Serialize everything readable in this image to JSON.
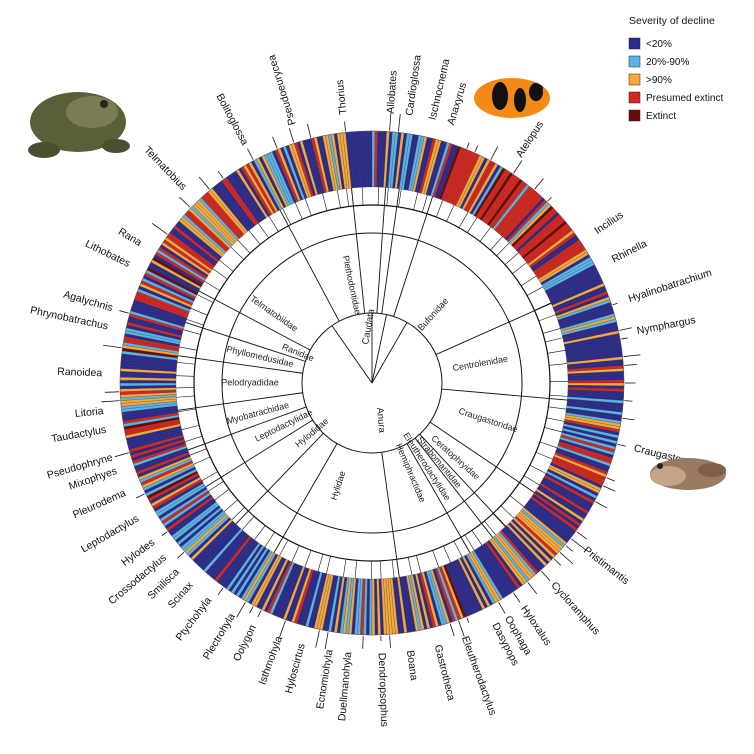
{
  "chart_data": {
    "type": "circular-phylogeny-bar",
    "legend": {
      "title": "Severity of decline",
      "entries": [
        {
          "label": "<20%",
          "color": "#2b2a8f"
        },
        {
          "label": "20%-90%",
          "color": "#5ab4e5"
        },
        {
          "label": ">90%",
          "color": "#f4a93c"
        },
        {
          "label": "Presumed extinct",
          "color": "#d7261e"
        },
        {
          "label": "Extinct",
          "color": "#6b0a0a"
        }
      ]
    },
    "orders": [
      {
        "name": "Caudata"
      },
      {
        "name": "Anura"
      }
    ],
    "families": [
      {
        "name": "Plethodontidae",
        "angle": -12,
        "r": 100
      },
      {
        "name": "Telmatobiidae",
        "angle": -55,
        "r": 120
      },
      {
        "name": "Ranidae",
        "angle": -68,
        "r": 80
      },
      {
        "name": "Phyllomedusidae",
        "angle": -77,
        "r": 115
      },
      {
        "name": "Pelodryadidae",
        "angle": -90,
        "r": 122
      },
      {
        "name": "Myobatrachidae",
        "angle": -105,
        "r": 118
      },
      {
        "name": "Leptodactylidae",
        "angle": -116,
        "r": 98
      },
      {
        "name": "Hylodidae",
        "angle": -130,
        "r": 78
      },
      {
        "name": "Hylidae",
        "angle": -162,
        "r": 108
      },
      {
        "name": "Hemiphractidae",
        "angle": 157,
        "r": 98
      },
      {
        "name": "Eleutherodactylidae",
        "angle": 147,
        "r": 100
      },
      {
        "name": "Strabomantidae",
        "angle": 140,
        "r": 104
      },
      {
        "name": "Craugastoridae",
        "angle": 108,
        "r": 122
      },
      {
        "name": "Ceratophryidae",
        "angle": 132,
        "r": 112
      },
      {
        "name": "Centrolenidae",
        "angle": 80,
        "r": 110
      },
      {
        "name": "Bufonidae",
        "angle": 42,
        "r": 92
      }
    ],
    "genera": [
      {
        "name": "Pseudoeurycea",
        "angle": -17
      },
      {
        "name": "Thorius",
        "angle": -6
      },
      {
        "name": "Allobates",
        "angle": 4
      },
      {
        "name": "Cardioglossa",
        "angle": 8
      },
      {
        "name": "Ischnocnema",
        "angle": 13
      },
      {
        "name": "Anaxyrus",
        "angle": 17
      },
      {
        "name": "Atelopus",
        "angle": 33
      },
      {
        "name": "Incilius",
        "angle": 56
      },
      {
        "name": "Rhinella",
        "angle": 63
      },
      {
        "name": "Hyalinobatrachium",
        "angle": 72
      },
      {
        "name": "Nymphargus",
        "angle": 79
      },
      {
        "name": "Craugastor",
        "angle": 104
      },
      {
        "name": "Pristimantis",
        "angle": 128
      },
      {
        "name": "Cycloramphus",
        "angle": 138
      },
      {
        "name": "Hyloxalus",
        "angle": 146
      },
      {
        "name": "Oophaga",
        "angle": 150
      },
      {
        "name": "Dasypops",
        "angle": 153
      },
      {
        "name": "Eleutherodactylus",
        "angle": 160
      },
      {
        "name": "Gastrotheca",
        "angle": 166
      },
      {
        "name": "Boana",
        "angle": 172
      },
      {
        "name": "Dendropsophus",
        "angle": 178
      },
      {
        "name": "Duellmanohyla",
        "angle": -175
      },
      {
        "name": "Ecnomiohyla",
        "angle": -171
      },
      {
        "name": "Hyloscirtus",
        "angle": -165
      },
      {
        "name": "Isthmohyla",
        "angle": -160
      },
      {
        "name": "Oolygon",
        "angle": -154
      },
      {
        "name": "Plectrohyla",
        "angle": -149
      },
      {
        "name": "Ptychohyla",
        "angle": -143
      },
      {
        "name": "Scinax",
        "angle": -138
      },
      {
        "name": "Smilisca",
        "angle": -134
      },
      {
        "name": "Crossodactylus",
        "angle": -130
      },
      {
        "name": "Hylodes",
        "angle": -126
      },
      {
        "name": "Leptodactylus",
        "angle": -120
      },
      {
        "name": "Pleurodema",
        "angle": -114
      },
      {
        "name": "Mixophyes",
        "angle": -109
      },
      {
        "name": "Pseudophryne",
        "angle": -106
      },
      {
        "name": "Taudactylus",
        "angle": -100
      },
      {
        "name": "Litoria",
        "angle": -96
      },
      {
        "name": "Ranoidea",
        "angle": -88
      },
      {
        "name": "Phrynobatrachus",
        "angle": -78
      },
      {
        "name": "Agalychnis",
        "angle": -74
      },
      {
        "name": "Lithobates",
        "angle": -64
      },
      {
        "name": "Rana",
        "angle": -59
      },
      {
        "name": "Telmatobius",
        "angle": -44
      },
      {
        "name": "Bolitoglossa",
        "angle": -28
      }
    ],
    "sector_colors": [
      {
        "from": -180,
        "to": -165,
        "weights": {
          "#2b2a8f": 0.55,
          "#5ab4e5": 0.2,
          "#f4a93c": 0.18,
          "#d7261e": 0.07
        }
      },
      {
        "from": -165,
        "to": -120,
        "weights": {
          "#2b2a8f": 0.5,
          "#5ab4e5": 0.25,
          "#f4a93c": 0.15,
          "#d7261e": 0.1
        }
      },
      {
        "from": -120,
        "to": -75,
        "weights": {
          "#2b2a8f": 0.45,
          "#5ab4e5": 0.2,
          "#f4a93c": 0.1,
          "#d7261e": 0.2,
          "#6b0a0a": 0.05
        }
      },
      {
        "from": -75,
        "to": -40,
        "weights": {
          "#2b2a8f": 0.3,
          "#5ab4e5": 0.1,
          "#f4a93c": 0.2,
          "#d7261e": 0.35,
          "#6b0a0a": 0.05
        }
      },
      {
        "from": -40,
        "to": 20,
        "weights": {
          "#2b2a8f": 0.55,
          "#5ab4e5": 0.15,
          "#f4a93c": 0.2,
          "#d7261e": 0.1
        }
      },
      {
        "from": 20,
        "to": 60,
        "weights": {
          "#2b2a8f": 0.1,
          "#5ab4e5": 0.05,
          "#f4a93c": 0.2,
          "#d7261e": 0.6,
          "#6b0a0a": 0.05
        }
      },
      {
        "from": 60,
        "to": 100,
        "weights": {
          "#2b2a8f": 0.55,
          "#5ab4e5": 0.15,
          "#f4a93c": 0.2,
          "#d7261e": 0.1
        }
      },
      {
        "from": 100,
        "to": 140,
        "weights": {
          "#2b2a8f": 0.45,
          "#5ab4e5": 0.1,
          "#f4a93c": 0.25,
          "#d7261e": 0.2
        }
      },
      {
        "from": 140,
        "to": 180,
        "weights": {
          "#2b2a8f": 0.4,
          "#5ab4e5": 0.15,
          "#f4a93c": 0.3,
          "#d7261e": 0.12,
          "#6b0a0a": 0.03
        }
      }
    ]
  }
}
